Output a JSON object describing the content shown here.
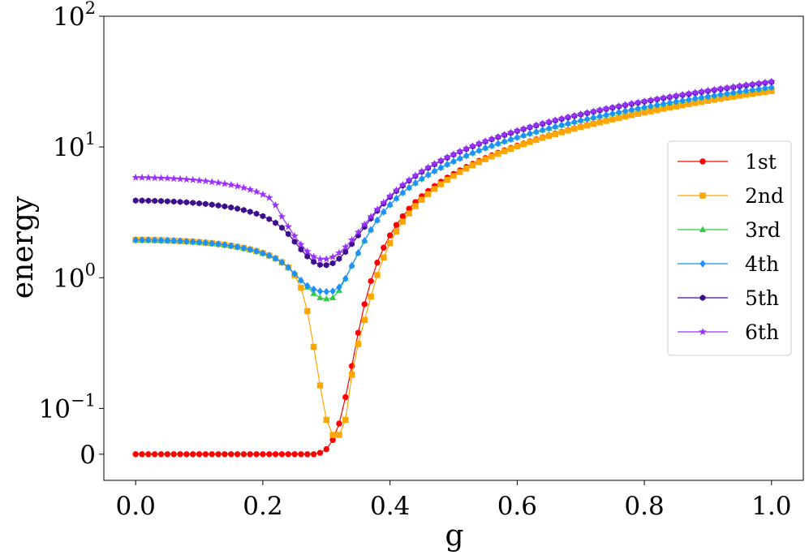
{
  "chart_data": {
    "type": "line",
    "xlabel": "g",
    "ylabel": "energy",
    "xlim": [
      -0.05,
      1.05
    ],
    "x_ticks": [
      "0.0",
      "0.2",
      "0.4",
      "0.6",
      "0.8",
      "1.0"
    ],
    "y_scale": "symlog",
    "y_linthresh": 0.1,
    "y_ticks": [
      {
        "base": "0",
        "exp": ""
      },
      {
        "base": "10",
        "exp": "−1"
      },
      {
        "base": "10",
        "exp": "0"
      },
      {
        "base": "10",
        "exp": "1"
      },
      {
        "base": "10",
        "exp": "2"
      }
    ],
    "x": [
      0.0,
      0.01,
      0.02,
      0.03,
      0.04,
      0.05,
      0.06,
      0.07,
      0.08,
      0.09,
      0.1,
      0.11,
      0.12,
      0.13,
      0.14,
      0.15,
      0.16,
      0.17,
      0.18,
      0.19,
      0.2,
      0.21,
      0.22,
      0.23,
      0.24,
      0.25,
      0.26,
      0.27,
      0.28,
      0.29,
      0.3,
      0.31,
      0.32,
      0.33,
      0.34,
      0.35,
      0.36,
      0.37,
      0.38,
      0.39,
      0.4,
      0.41,
      0.42,
      0.43,
      0.44,
      0.45,
      0.46,
      0.47,
      0.48,
      0.49,
      0.5,
      0.51,
      0.52,
      0.53,
      0.54,
      0.55,
      0.56,
      0.57,
      0.58,
      0.59,
      0.6,
      0.61,
      0.62,
      0.63,
      0.64,
      0.65,
      0.66,
      0.67,
      0.68,
      0.69,
      0.7,
      0.71,
      0.72,
      0.73,
      0.74,
      0.75,
      0.76,
      0.77,
      0.78,
      0.79,
      0.8,
      0.81,
      0.82,
      0.83,
      0.84,
      0.85,
      0.86,
      0.87,
      0.88,
      0.89,
      0.9,
      0.91,
      0.92,
      0.93,
      0.94,
      0.95,
      0.96,
      0.97,
      0.98,
      0.99,
      1.0
    ],
    "series": [
      {
        "name": "1st",
        "color": "#ff0000",
        "marker": "circle",
        "values": [
          0.0,
          0.0,
          0.0,
          0.0,
          0.0,
          0.0,
          0.0,
          0.0,
          0.0,
          0.0,
          0.0,
          0.0,
          0.0,
          0.0,
          0.0,
          0.0,
          0.0,
          0.0,
          0.0,
          0.0,
          0.0,
          0.0,
          0.0,
          0.0,
          0.0,
          0.0,
          0.0,
          0.0,
          0.0,
          0.003,
          0.011,
          0.031,
          0.067,
          0.122,
          0.211,
          0.379,
          0.627,
          0.942,
          1.305,
          1.697,
          2.107,
          2.533,
          2.951,
          3.369,
          3.789,
          4.2,
          4.61,
          5.018,
          5.423,
          5.826,
          6.227,
          6.628,
          7.028,
          7.428,
          7.829,
          8.229,
          8.629,
          9.03,
          9.431,
          9.832,
          10.234,
          10.636,
          11.039,
          11.443,
          11.847,
          12.252,
          12.658,
          13.064,
          13.471,
          13.879,
          14.287,
          14.696,
          15.106,
          15.517,
          15.928,
          16.34,
          16.752,
          17.165,
          17.579,
          17.993,
          18.408,
          18.824,
          19.24,
          19.657,
          20.074,
          20.492,
          20.911,
          21.33,
          21.75,
          22.17,
          22.591,
          23.012,
          23.434,
          23.856,
          24.279,
          24.703,
          25.127,
          25.551,
          25.976,
          26.402,
          26.828
        ]
      },
      {
        "name": "2nd",
        "color": "#ffa500",
        "marker": "square",
        "values": [
          1.945,
          1.944,
          1.942,
          1.938,
          1.933,
          1.926,
          1.918,
          1.909,
          1.897,
          1.884,
          1.868,
          1.851,
          1.831,
          1.808,
          1.783,
          1.754,
          1.722,
          1.685,
          1.643,
          1.596,
          1.542,
          1.479,
          1.404,
          1.313,
          1.198,
          1.045,
          0.837,
          0.555,
          0.296,
          0.15,
          0.075,
          0.042,
          0.042,
          0.075,
          0.181,
          0.311,
          0.475,
          0.717,
          1.049,
          1.429,
          1.839,
          2.261,
          2.684,
          3.107,
          3.528,
          3.948,
          4.365,
          4.781,
          5.195,
          5.607,
          6.018,
          6.428,
          6.837,
          7.245,
          7.653,
          8.06,
          8.467,
          8.874,
          9.28,
          9.687,
          10.094,
          10.501,
          10.908,
          11.316,
          11.724,
          12.133,
          12.542,
          12.952,
          13.362,
          13.773,
          14.185,
          14.597,
          15.01,
          15.424,
          15.838,
          16.253,
          16.668,
          17.084,
          17.501,
          17.918,
          18.336,
          18.754,
          19.173,
          19.593,
          20.013,
          20.434,
          20.855,
          21.277,
          21.699,
          22.122,
          22.546,
          22.97,
          23.394,
          23.819,
          24.245,
          24.671,
          25.098,
          25.525,
          25.952,
          26.38,
          26.809
        ]
      },
      {
        "name": "3rd",
        "color": "#2ecc40",
        "marker": "triangle",
        "values": [
          1.945,
          1.944,
          1.942,
          1.938,
          1.933,
          1.926,
          1.918,
          1.909,
          1.897,
          1.884,
          1.868,
          1.851,
          1.831,
          1.808,
          1.783,
          1.754,
          1.722,
          1.685,
          1.643,
          1.596,
          1.542,
          1.479,
          1.404,
          1.313,
          1.198,
          1.075,
          0.955,
          0.848,
          0.757,
          0.703,
          0.688,
          0.702,
          0.799,
          0.985,
          1.238,
          1.548,
          1.917,
          2.327,
          2.756,
          3.188,
          3.617,
          4.043,
          4.465,
          4.885,
          5.302,
          5.718,
          6.132,
          6.544,
          6.956,
          7.366,
          7.776,
          8.185,
          8.593,
          9.001,
          9.409,
          9.816,
          10.224,
          10.631,
          11.039,
          11.447,
          11.855,
          12.264,
          12.673,
          13.083,
          13.493,
          13.904,
          14.315,
          14.727,
          15.14,
          15.553,
          15.967,
          16.381,
          16.796,
          17.212,
          17.628,
          18.045,
          18.462,
          18.88,
          19.299,
          19.718,
          20.138,
          20.558,
          20.979,
          21.401,
          21.823,
          22.245,
          22.668,
          23.092,
          23.516,
          23.941,
          24.366,
          24.791,
          25.217,
          25.644,
          26.071,
          26.499,
          26.927,
          27.355,
          27.784,
          28.214,
          28.644
        ]
      },
      {
        "name": "4th",
        "color": "#1e90ff",
        "marker": "diamond",
        "values": [
          1.945,
          1.944,
          1.942,
          1.938,
          1.933,
          1.926,
          1.918,
          1.909,
          1.897,
          1.884,
          1.868,
          1.851,
          1.831,
          1.808,
          1.783,
          1.754,
          1.722,
          1.685,
          1.643,
          1.596,
          1.542,
          1.479,
          1.404,
          1.313,
          1.198,
          1.075,
          0.955,
          0.867,
          0.816,
          0.788,
          0.781,
          0.789,
          0.846,
          0.985,
          1.238,
          1.548,
          1.917,
          2.327,
          2.756,
          3.188,
          3.617,
          4.043,
          4.465,
          4.885,
          5.302,
          5.718,
          6.132,
          6.544,
          6.956,
          7.366,
          7.776,
          8.185,
          8.593,
          9.001,
          9.409,
          9.816,
          10.224,
          10.631,
          11.039,
          11.447,
          11.855,
          12.264,
          12.673,
          13.083,
          13.493,
          13.904,
          14.315,
          14.727,
          15.14,
          15.553,
          15.967,
          16.381,
          16.796,
          17.212,
          17.628,
          18.045,
          18.462,
          18.88,
          19.299,
          19.718,
          20.138,
          20.558,
          20.979,
          21.401,
          21.823,
          22.245,
          22.668,
          23.092,
          23.516,
          23.941,
          24.366,
          24.791,
          25.217,
          25.644,
          26.071,
          26.499,
          26.927,
          27.355,
          27.784,
          28.214,
          28.644
        ]
      },
      {
        "name": "5th",
        "color": "#3d0f8f",
        "marker": "hexagon",
        "values": [
          3.891,
          3.888,
          3.882,
          3.872,
          3.859,
          3.842,
          3.822,
          3.798,
          3.771,
          3.74,
          3.704,
          3.664,
          3.619,
          3.568,
          3.511,
          3.446,
          3.373,
          3.29,
          3.195,
          3.085,
          2.957,
          2.806,
          2.627,
          2.413,
          2.16,
          1.884,
          1.645,
          1.455,
          1.323,
          1.255,
          1.248,
          1.289,
          1.398,
          1.575,
          1.811,
          2.107,
          2.449,
          2.833,
          3.249,
          3.687,
          4.14,
          4.6,
          5.062,
          5.526,
          5.989,
          6.451,
          6.912,
          7.371,
          7.829,
          8.285,
          8.74,
          9.194,
          9.647,
          10.099,
          10.55,
          11.0,
          11.45,
          11.899,
          12.348,
          12.797,
          13.245,
          13.693,
          14.141,
          14.589,
          15.037,
          15.486,
          15.934,
          16.383,
          16.832,
          17.281,
          17.731,
          18.181,
          18.631,
          19.082,
          19.533,
          19.985,
          20.437,
          20.89,
          21.343,
          21.797,
          22.251,
          22.706,
          23.161,
          23.617,
          24.073,
          24.53,
          24.987,
          25.445,
          25.903,
          26.362,
          26.821,
          27.281,
          27.741,
          28.202,
          28.663,
          29.125,
          29.587,
          30.05,
          30.513,
          30.977,
          31.441
        ]
      },
      {
        "name": "6th",
        "color": "#9b30ff",
        "marker": "star",
        "values": [
          5.837,
          5.832,
          5.821,
          5.806,
          5.785,
          5.76,
          5.728,
          5.692,
          5.649,
          5.599,
          5.543,
          5.479,
          5.407,
          5.325,
          5.233,
          5.129,
          5.011,
          4.876,
          4.721,
          4.543,
          4.336,
          4.094,
          3.585,
          2.935,
          2.456,
          2.086,
          1.796,
          1.585,
          1.45,
          1.389,
          1.389,
          1.44,
          1.549,
          1.718,
          1.945,
          2.227,
          2.558,
          2.931,
          3.338,
          3.769,
          4.216,
          4.671,
          5.131,
          5.592,
          6.053,
          6.514,
          6.974,
          7.433,
          7.891,
          8.347,
          8.802,
          9.257,
          9.71,
          10.163,
          10.615,
          11.066,
          11.517,
          11.968,
          12.418,
          12.868,
          13.318,
          13.768,
          14.218,
          14.668,
          15.118,
          15.569,
          16.02,
          16.471,
          16.922,
          17.374,
          17.827,
          18.28,
          18.733,
          19.187,
          19.642,
          20.097,
          20.553,
          21.009,
          21.466,
          21.923,
          22.381,
          22.84,
          23.299,
          23.759,
          24.219,
          24.68,
          25.141,
          25.603,
          26.066,
          26.529,
          26.993,
          27.457,
          27.922,
          28.387,
          28.853,
          29.32,
          29.787,
          30.254,
          30.722,
          31.191,
          31.66
        ]
      }
    ],
    "legend_position": "right"
  }
}
